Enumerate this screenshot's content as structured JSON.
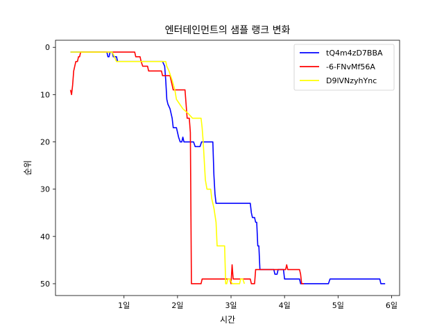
{
  "chart_data": {
    "type": "line",
    "title": "엔터테인먼트의 샘플 랭크 변화",
    "xlabel": "시간",
    "ylabel": "순위",
    "xlim": [
      -0.28,
      6.15
    ],
    "ylim": [
      52.5,
      -1.5
    ],
    "y_inverted": true,
    "xticks": [
      1,
      2,
      3,
      4,
      5,
      6
    ],
    "xtick_labels": [
      "1일",
      "2일",
      "3일",
      "4일",
      "5일",
      "6일"
    ],
    "yticks": [
      0,
      10,
      20,
      30,
      40,
      50
    ],
    "ytick_labels": [
      "0",
      "10",
      "20",
      "30",
      "40",
      "50"
    ],
    "grid": false,
    "legend_position": "top-right",
    "series": [
      {
        "name": "tQ4m4zD7BBA",
        "color": "#0000ff",
        "points": [
          [
            0.0,
            1
          ],
          [
            0.68,
            1
          ],
          [
            0.7,
            2
          ],
          [
            0.72,
            2
          ],
          [
            0.74,
            1
          ],
          [
            0.78,
            1
          ],
          [
            0.8,
            2
          ],
          [
            0.86,
            2
          ],
          [
            0.88,
            3
          ],
          [
            1.72,
            3
          ],
          [
            1.76,
            4
          ],
          [
            1.78,
            7
          ],
          [
            1.8,
            11
          ],
          [
            1.82,
            12
          ],
          [
            1.86,
            13
          ],
          [
            1.88,
            14
          ],
          [
            1.9,
            15
          ],
          [
            1.92,
            17
          ],
          [
            1.98,
            17
          ],
          [
            2.02,
            19
          ],
          [
            2.05,
            20
          ],
          [
            2.08,
            20
          ],
          [
            2.1,
            19
          ],
          [
            2.12,
            20
          ],
          [
            2.3,
            20
          ],
          [
            2.33,
            21
          ],
          [
            2.42,
            21
          ],
          [
            2.45,
            20
          ],
          [
            2.66,
            20
          ],
          [
            2.68,
            27
          ],
          [
            2.7,
            31
          ],
          [
            2.72,
            33
          ],
          [
            3.36,
            33
          ],
          [
            3.38,
            35
          ],
          [
            3.4,
            36
          ],
          [
            3.44,
            36
          ],
          [
            3.46,
            37
          ],
          [
            3.48,
            37
          ],
          [
            3.5,
            42
          ],
          [
            3.52,
            42
          ],
          [
            3.54,
            47
          ],
          [
            3.8,
            47
          ],
          [
            3.82,
            48
          ],
          [
            3.86,
            48
          ],
          [
            3.88,
            47
          ],
          [
            3.98,
            47
          ],
          [
            4.0,
            49
          ],
          [
            4.28,
            49
          ],
          [
            4.3,
            50
          ],
          [
            4.82,
            50
          ],
          [
            4.85,
            49
          ],
          [
            5.78,
            49
          ],
          [
            5.8,
            50
          ],
          [
            5.88,
            50
          ]
        ]
      },
      {
        "name": "-6-FNvMf56A",
        "color": "#ff0000",
        "points": [
          [
            0.0,
            9
          ],
          [
            0.02,
            10
          ],
          [
            0.04,
            8
          ],
          [
            0.06,
            5
          ],
          [
            0.08,
            4
          ],
          [
            0.1,
            3
          ],
          [
            0.13,
            3
          ],
          [
            0.15,
            2
          ],
          [
            0.17,
            2
          ],
          [
            0.19,
            1
          ],
          [
            1.2,
            1
          ],
          [
            1.22,
            2
          ],
          [
            1.3,
            2
          ],
          [
            1.32,
            3
          ],
          [
            1.35,
            4
          ],
          [
            1.44,
            4
          ],
          [
            1.46,
            5
          ],
          [
            1.7,
            5
          ],
          [
            1.72,
            6
          ],
          [
            1.86,
            6
          ],
          [
            1.88,
            7
          ],
          [
            1.9,
            8
          ],
          [
            1.92,
            9
          ],
          [
            2.14,
            9
          ],
          [
            2.16,
            12
          ],
          [
            2.18,
            15
          ],
          [
            2.22,
            15
          ],
          [
            2.24,
            18
          ],
          [
            2.26,
            50
          ],
          [
            2.44,
            50
          ],
          [
            2.46,
            49
          ],
          [
            2.98,
            49
          ],
          [
            3.0,
            50
          ],
          [
            3.02,
            46
          ],
          [
            3.04,
            49
          ],
          [
            3.36,
            49
          ],
          [
            3.38,
            50
          ],
          [
            3.44,
            50
          ],
          [
            3.46,
            47
          ],
          [
            4.02,
            47
          ],
          [
            4.04,
            46
          ],
          [
            4.06,
            47
          ],
          [
            4.28,
            47
          ],
          [
            4.3,
            48
          ],
          [
            4.32,
            50
          ],
          [
            4.36,
            50
          ]
        ]
      },
      {
        "name": "D9lVNzyhYnc",
        "color": "#ffff00",
        "points": [
          [
            0.0,
            1
          ],
          [
            0.78,
            1
          ],
          [
            0.82,
            2
          ],
          [
            0.86,
            3
          ],
          [
            1.78,
            3
          ],
          [
            1.8,
            4
          ],
          [
            1.84,
            5
          ],
          [
            1.9,
            7
          ],
          [
            1.95,
            9
          ],
          [
            1.98,
            11
          ],
          [
            2.04,
            12
          ],
          [
            2.1,
            13
          ],
          [
            2.2,
            14
          ],
          [
            2.28,
            15
          ],
          [
            2.44,
            15
          ],
          [
            2.46,
            17
          ],
          [
            2.48,
            20
          ],
          [
            2.5,
            24
          ],
          [
            2.52,
            28
          ],
          [
            2.55,
            30
          ],
          [
            2.62,
            30
          ],
          [
            2.64,
            32
          ],
          [
            2.68,
            34
          ],
          [
            2.72,
            37
          ],
          [
            2.74,
            42
          ],
          [
            2.88,
            42
          ],
          [
            2.9,
            50
          ],
          [
            2.92,
            50
          ],
          [
            2.94,
            49
          ],
          [
            2.98,
            49
          ],
          [
            3.02,
            50
          ],
          [
            3.16,
            50
          ],
          [
            3.18,
            49
          ],
          [
            3.22,
            49
          ],
          [
            3.25,
            50
          ]
        ]
      }
    ]
  }
}
